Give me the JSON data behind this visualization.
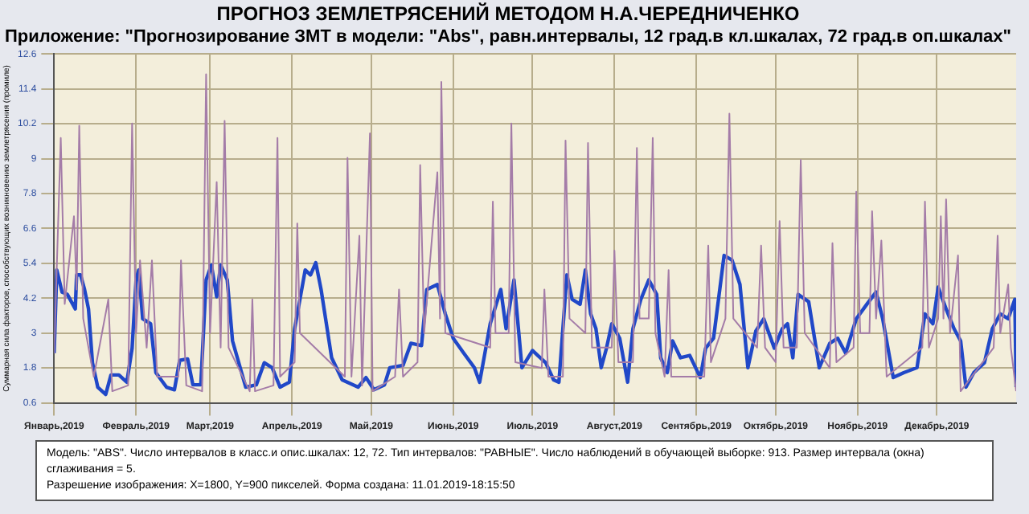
{
  "chart_data": {
    "type": "line",
    "title": "ПРОГНОЗ ЗЕМЛЕТРЯСЕНИЙ МЕТОДОМ Н.А.ЧЕРЕДНИЧЕНКО",
    "subtitle": "Приложение: \"Прогнозирование ЗМТ в модели: \"Abs\", равн.интервалы, 12 град.в кл.шкалах, 72 град.в оп.шкалах\"",
    "ylabel": "Суммарная сила факторов, способствующих возникновению землетрясения (промиле)",
    "xlim": [
      "2019-01-01",
      "2019-12-31"
    ],
    "xticks": [
      {
        "value": "2019-01-01",
        "label": "Январь,2019"
      },
      {
        "value": "2019-02-01",
        "label": "Февраль,2019"
      },
      {
        "value": "2019-03-01",
        "label": "Март,2019"
      },
      {
        "value": "2019-04-01",
        "label": "Апрель,2019"
      },
      {
        "value": "2019-05-01",
        "label": "Май,2019"
      },
      {
        "value": "2019-06-01",
        "label": "Июнь,2019"
      },
      {
        "value": "2019-07-01",
        "label": "Июль,2019"
      },
      {
        "value": "2019-08-01",
        "label": "Август,2019"
      },
      {
        "value": "2019-09-01",
        "label": "Сентябрь,2019"
      },
      {
        "value": "2019-10-01",
        "label": "Октябрь,2019"
      },
      {
        "value": "2019-11-01",
        "label": "Ноябрь,2019"
      },
      {
        "value": "2019-12-01",
        "label": "Декабрь,2019"
      }
    ],
    "ylim": [
      0.6,
      12.6
    ],
    "yticks": [
      0.6,
      1.8,
      3.0,
      4.2,
      5.4,
      6.6,
      7.8,
      9.0,
      10.2,
      11.4,
      12.6
    ],
    "grid": true,
    "legend": false,
    "marker": "none",
    "line_style": "solid",
    "series": [
      {
        "color": "#a47ca8",
        "x": [
          "2019-01-01",
          "2019-01-03T12:00",
          "2019-01-05",
          "2019-01-08T12:00",
          "2019-01-09T12:00",
          "2019-01-10T12:00",
          "2019-01-12",
          "2019-01-16",
          "2019-01-21T12:00",
          "2019-01-23",
          "2019-01-29",
          "2019-01-30T12:00",
          "2019-02-01",
          "2019-02-02T12:00",
          "2019-02-05",
          "2019-02-07",
          "2019-02-09",
          "2019-02-17",
          "2019-02-18",
          "2019-02-20",
          "2019-02-26",
          "2019-02-27T12:00",
          "2019-03-01",
          "2019-03-03T12:00",
          "2019-03-05",
          "2019-03-06T12:00",
          "2019-03-08",
          "2019-03-16",
          "2019-03-17",
          "2019-03-18",
          "2019-03-25",
          "2019-03-26T12:00",
          "2019-03-27T12:00",
          "2019-04-02",
          "2019-04-03",
          "2019-04-04",
          "2019-04-21",
          "2019-04-22",
          "2019-04-23T12:00",
          "2019-04-26T12:00",
          "2019-04-27T12:00",
          "2019-04-30T12:00",
          "2019-05-01T12:00",
          "2019-05-10",
          "2019-05-11T12:00",
          "2019-05-13",
          "2019-05-18T12:00",
          "2019-05-19T12:00",
          "2019-05-21",
          "2019-05-26",
          "2019-05-27",
          "2019-05-27T12:00",
          "2019-05-29",
          "2019-06-15",
          "2019-06-16",
          "2019-06-17",
          "2019-06-22",
          "2019-06-23",
          "2019-06-24T12:00",
          "2019-07-04T12:00",
          "2019-07-05T12:00",
          "2019-07-07",
          "2019-07-12T12:00",
          "2019-07-13T12:00",
          "2019-07-15",
          "2019-07-21",
          "2019-07-22",
          "2019-07-23T12:00",
          "2019-07-31",
          "2019-08-01",
          "2019-08-02T12:00",
          "2019-08-08",
          "2019-08-09T12:00",
          "2019-08-10T12:00",
          "2019-08-14",
          "2019-08-15T12:00",
          "2019-08-16T12:00",
          "2019-08-20",
          "2019-08-21T12:00",
          "2019-08-22T12:00",
          "2019-09-04",
          "2019-09-05T12:00",
          "2019-09-06T12:00",
          "2019-09-12",
          "2019-09-13T12:00",
          "2019-09-15",
          "2019-09-24",
          "2019-09-25T12:00",
          "2019-09-27",
          "2019-10-01",
          "2019-10-02T12:00",
          "2019-10-04",
          "2019-10-09",
          "2019-10-10T12:00",
          "2019-10-12",
          "2019-10-21T12:00",
          "2019-10-22T12:00",
          "2019-10-24",
          "2019-10-30T12:00",
          "2019-10-31T12:00",
          "2019-11-02",
          "2019-11-05T12:00",
          "2019-11-06T12:00",
          "2019-11-08",
          "2019-11-10",
          "2019-11-12",
          "2019-11-25T12:00",
          "2019-11-26T12:00",
          "2019-11-28",
          "2019-12-01T12:00",
          "2019-12-02T12:00",
          "2019-12-03T12:00",
          "2019-12-04T12:00",
          "2019-12-06",
          "2019-12-09",
          "2019-12-10",
          "2019-12-22T12:00",
          "2019-12-24",
          "2019-12-25",
          "2019-12-28",
          "2019-12-29",
          "2019-12-31"
        ],
        "values": [
          2.3,
          9.71,
          4.0,
          7.02,
          4.5,
          10.13,
          3.5,
          1.5,
          4.16,
          1.0,
          1.2,
          10.21,
          3.0,
          5.5,
          2.5,
          5.5,
          1.5,
          1.5,
          5.5,
          1.2,
          1.0,
          11.9,
          3.0,
          8.19,
          2.5,
          10.3,
          2.5,
          1.0,
          4.16,
          1.0,
          1.2,
          9.71,
          1.5,
          2.0,
          6.77,
          3.0,
          1.5,
          9.03,
          1.5,
          6.35,
          1.2,
          9.87,
          1.0,
          1.5,
          4.5,
          1.5,
          2.0,
          8.78,
          3.0,
          8.53,
          3.5,
          11.64,
          3.0,
          2.5,
          7.52,
          3.0,
          3.0,
          10.21,
          2.0,
          1.8,
          4.5,
          1.5,
          1.5,
          9.62,
          3.5,
          3.0,
          9.54,
          2.5,
          2.5,
          5.84,
          2.0,
          2.0,
          9.37,
          3.5,
          3.5,
          9.71,
          3.0,
          1.5,
          5.17,
          1.5,
          1.5,
          6.01,
          2.0,
          3.5,
          10.55,
          3.5,
          2.5,
          6.01,
          2.5,
          2.0,
          6.85,
          2.5,
          2.5,
          8.95,
          3.0,
          1.8,
          6.09,
          2.0,
          2.5,
          7.86,
          3.0,
          3.0,
          7.19,
          3.5,
          6.18,
          1.5,
          2.5,
          7.52,
          2.5,
          3.5,
          7.02,
          3.5,
          7.6,
          3.0,
          5.67,
          1.0,
          2.5,
          6.35,
          3.0,
          4.67,
          2.5,
          1.0
        ]
      },
      {
        "color": "#2048c8",
        "x": [
          "2019-01-01",
          "2019-01-02",
          "2019-01-04",
          "2019-01-06",
          "2019-01-09",
          "2019-01-09T12:00",
          "2019-01-11",
          "2019-01-12T12:00",
          "2019-01-14",
          "2019-01-15T12:00",
          "2019-01-17T12:00",
          "2019-01-20T12:00",
          "2019-01-22T12:00",
          "2019-01-25T12:00",
          "2019-01-28T12:00",
          "2019-01-30T12:00",
          "2019-02-01",
          "2019-02-02",
          "2019-02-03T12:00",
          "2019-02-06T12:00",
          "2019-02-08T12:00",
          "2019-02-12T12:00",
          "2019-02-15T12:00",
          "2019-02-17T12:00",
          "2019-02-20T12:00",
          "2019-02-22T12:00",
          "2019-02-25T12:00",
          "2019-02-27T12:00",
          "2019-03-01T12:00",
          "2019-03-03T12:00",
          "2019-03-05",
          "2019-03-07T12:00",
          "2019-03-09T12:00",
          "2019-03-14T12:00",
          "2019-03-18T12:00",
          "2019-03-21T12:00",
          "2019-03-24T12:00",
          "2019-03-27T12:00",
          "2019-03-31",
          "2019-04-02",
          "2019-04-06",
          "2019-04-08",
          "2019-04-10",
          "2019-04-12",
          "2019-04-16",
          "2019-04-20",
          "2019-04-26",
          "2019-04-29",
          "2019-05-02",
          "2019-05-06",
          "2019-05-08",
          "2019-05-13",
          "2019-05-16",
          "2019-05-20",
          "2019-05-22",
          "2019-05-26",
          "2019-05-29",
          "2019-06-01",
          "2019-06-05",
          "2019-06-09",
          "2019-06-11",
          "2019-06-15",
          "2019-06-19",
          "2019-06-21",
          "2019-06-24",
          "2019-06-27",
          "2019-07-01",
          "2019-07-03",
          "2019-07-06",
          "2019-07-09",
          "2019-07-11",
          "2019-07-14",
          "2019-07-16",
          "2019-07-19",
          "2019-07-21",
          "2019-07-23",
          "2019-07-25",
          "2019-07-27",
          "2019-07-29",
          "2019-07-31",
          "2019-08-03",
          "2019-08-06",
          "2019-08-08",
          "2019-08-11",
          "2019-08-14",
          "2019-08-17",
          "2019-08-18T12:00",
          "2019-08-21",
          "2019-08-23",
          "2019-08-26",
          "2019-08-29T12:00",
          "2019-09-02T12:00",
          "2019-09-04T12:00",
          "2019-09-07T12:00",
          "2019-09-11T12:00",
          "2019-09-14T12:00",
          "2019-09-17T12:00",
          "2019-09-20T12:00",
          "2019-09-23T12:00",
          "2019-09-26T12:00",
          "2019-09-30T12:00",
          "2019-10-03T12:00",
          "2019-10-05T12:00",
          "2019-10-07T12:00",
          "2019-10-09T12:00",
          "2019-10-13T12:00",
          "2019-10-17T12:00",
          "2019-10-21T12:00",
          "2019-10-24T12:00",
          "2019-10-27T12:00",
          "2019-10-31T12:00",
          "2019-11-04T12:00",
          "2019-11-08",
          "2019-11-10T12:00",
          "2019-11-14T12:00",
          "2019-11-18T12:00",
          "2019-11-23T12:00",
          "2019-11-26T12:00",
          "2019-11-29T12:00",
          "2019-12-01T12:00",
          "2019-12-04T12:00",
          "2019-12-07T12:00",
          "2019-12-10",
          "2019-12-12",
          "2019-12-15",
          "2019-12-19",
          "2019-12-22",
          "2019-12-25",
          "2019-12-28",
          "2019-12-30T12:00",
          "2019-12-31"
        ],
        "values": [
          2.31,
          5.17,
          4.41,
          4.33,
          3.83,
          5.0,
          5.0,
          4.5,
          3.83,
          1.98,
          1.14,
          0.89,
          1.56,
          1.56,
          1.31,
          2.48,
          4.83,
          5.17,
          3.49,
          3.32,
          1.64,
          1.14,
          1.05,
          2.06,
          2.11,
          1.22,
          1.22,
          4.83,
          5.34,
          4.25,
          5.34,
          4.83,
          2.73,
          1.14,
          1.22,
          1.98,
          1.81,
          1.14,
          1.31,
          3.15,
          5.17,
          5.0,
          5.42,
          4.5,
          2.15,
          1.39,
          1.14,
          1.47,
          1.05,
          1.22,
          1.81,
          1.89,
          2.65,
          2.57,
          4.5,
          4.67,
          3.66,
          2.82,
          2.31,
          1.81,
          1.31,
          3.32,
          4.5,
          3.15,
          4.83,
          1.81,
          2.4,
          2.23,
          1.98,
          1.39,
          1.31,
          5.0,
          4.16,
          3.99,
          5.17,
          3.66,
          3.15,
          1.81,
          2.48,
          3.32,
          2.82,
          1.31,
          3.15,
          4.16,
          4.83,
          4.33,
          2.15,
          1.64,
          2.73,
          2.15,
          2.23,
          1.47,
          2.48,
          2.82,
          5.67,
          5.51,
          4.67,
          1.81,
          3.07,
          3.49,
          2.48,
          3.15,
          3.32,
          2.15,
          4.33,
          4.08,
          1.81,
          2.65,
          2.82,
          2.31,
          3.49,
          3.99,
          4.41,
          3.49,
          1.47,
          1.64,
          1.81,
          3.66,
          3.32,
          4.58,
          3.83,
          3.15,
          2.73,
          1.14,
          1.64,
          1.98,
          3.15,
          3.66,
          3.49,
          4.16,
          1.14
        ]
      }
    ],
    "annotations": [
      "Модель: \"ABS\". Число интервалов в класс.и опис.шкалах: 12, 72. Тип интервалов: \"РАВНЫЕ\". Число наблюдений в обучающей выборке: 913. Размер интервала (окна) сглаживания = 5.",
      "Разрешение изображения: X=1800, Y=900 пикселей. Форма создана: 11.01.2019-18:15:50"
    ]
  }
}
